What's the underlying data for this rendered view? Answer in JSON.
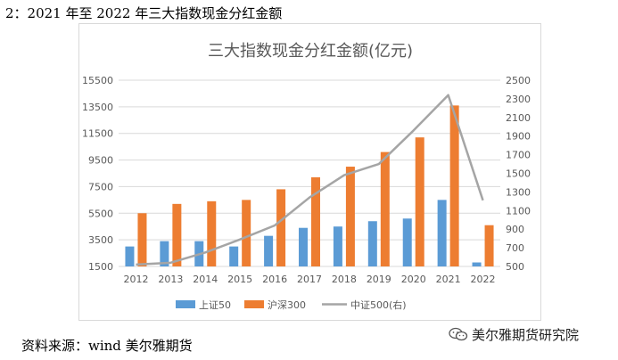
{
  "caption": "2：2021 年至 2022 年三大指数现金分红金额",
  "source": "资料来源：wind 美尔雅期货",
  "watermark": {
    "text": "美尔雅期货研究院",
    "icon": "wechat-icon"
  },
  "chart_data": {
    "type": "bar",
    "title": "三大指数现金分红金额(亿元)",
    "categories": [
      "2012",
      "2013",
      "2014",
      "2015",
      "2016",
      "2017",
      "2018",
      "2019",
      "2020",
      "2021",
      "2022"
    ],
    "y_left": {
      "min": 1500,
      "max": 15500,
      "ticks": [
        1500,
        3500,
        5500,
        7500,
        9500,
        11500,
        13500,
        15500
      ]
    },
    "y_right": {
      "min": 500,
      "max": 2500,
      "ticks": [
        500,
        700,
        900,
        1100,
        1300,
        1500,
        1700,
        1900,
        2100,
        2300,
        2500
      ]
    },
    "grid": true,
    "legend_position": "bottom",
    "series": [
      {
        "name": "上证50",
        "type": "bar",
        "axis": "left",
        "color": "#5b9bd5",
        "values": [
          3000,
          3400,
          3400,
          3000,
          3800,
          4400,
          4500,
          4900,
          5100,
          6500,
          1800
        ]
      },
      {
        "name": "沪深300",
        "type": "bar",
        "axis": "left",
        "color": "#ed7d31",
        "values": [
          5500,
          6200,
          6400,
          6500,
          7300,
          8200,
          9000,
          10100,
          11200,
          13600,
          4600
        ]
      },
      {
        "name": "中证500(右)",
        "type": "line",
        "axis": "right",
        "color": "#a5a5a5",
        "values": [
          520,
          540,
          650,
          790,
          940,
          1240,
          1480,
          1600,
          1960,
          2340,
          1210
        ]
      }
    ]
  }
}
